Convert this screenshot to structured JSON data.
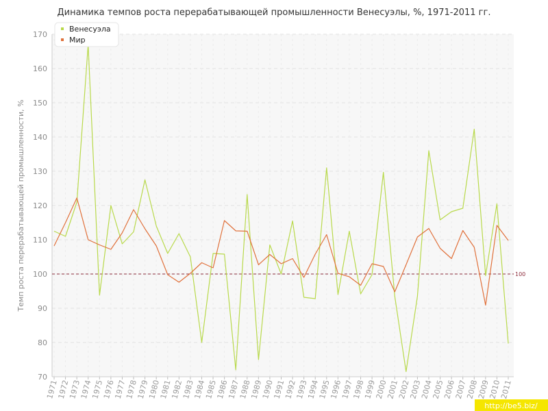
{
  "chart_data": {
    "type": "line",
    "title": "Динамика темпов роста перерабатывающей промышленности Венесуэлы, %, 1971-2011 гг.",
    "ylabel": "Темп роста перерабатывающей промышленности, %",
    "xlabel": "",
    "ylim": [
      70,
      170
    ],
    "yticks": [
      70,
      80,
      90,
      100,
      110,
      120,
      130,
      140,
      150,
      160,
      170
    ],
    "x": [
      "1971",
      "1972",
      "1973",
      "1974",
      "1975",
      "1976",
      "1977",
      "1978",
      "1979",
      "1980",
      "1981",
      "1982",
      "1983",
      "1984",
      "1985",
      "1986",
      "1987",
      "1988",
      "1989",
      "1990",
      "1991",
      "1992",
      "1993",
      "1994",
      "1995",
      "1996",
      "1997",
      "1998",
      "1999",
      "2000",
      "2001",
      "2002",
      "2003",
      "2004",
      "2005",
      "2006",
      "2007",
      "2008",
      "2009",
      "2010",
      "2011"
    ],
    "series": [
      {
        "name": "Венесуэла",
        "color": "#b8d94a",
        "values": [
          112.5,
          111,
          121,
          167,
          93.8,
          120,
          108.8,
          112.3,
          127.5,
          114,
          106,
          111.8,
          105,
          80,
          106,
          105.8,
          72,
          123.2,
          75,
          108.5,
          100,
          115.5,
          93.2,
          92.8,
          131,
          94,
          112.5,
          94.2,
          99.8,
          129.7,
          93.5,
          71.5,
          93.5,
          136,
          115.8,
          118.2,
          119.2,
          142.3,
          99.5,
          120.5,
          79.7
        ]
      },
      {
        "name": "Мир",
        "color": "#e0703a",
        "values": [
          108.2,
          115,
          122.2,
          110,
          108.5,
          107.2,
          112,
          118.8,
          113.2,
          108.2,
          99.8,
          97.6,
          100.2,
          103.3,
          101.8,
          115.6,
          112.6,
          112.5,
          102.7,
          105.7,
          103,
          104.5,
          99,
          105.8,
          111.5,
          100.2,
          99.2,
          96.7,
          103,
          102.2,
          94.8,
          102.7,
          110.8,
          113.3,
          107.5,
          104.5,
          112.7,
          107.8,
          90.9,
          114.2,
          109.8
        ]
      }
    ],
    "reference_line": {
      "value": 100,
      "label": "100",
      "color": "#8b2a3a"
    },
    "grid": true,
    "legend": "top-left"
  },
  "watermark": "http://be5.biz/"
}
